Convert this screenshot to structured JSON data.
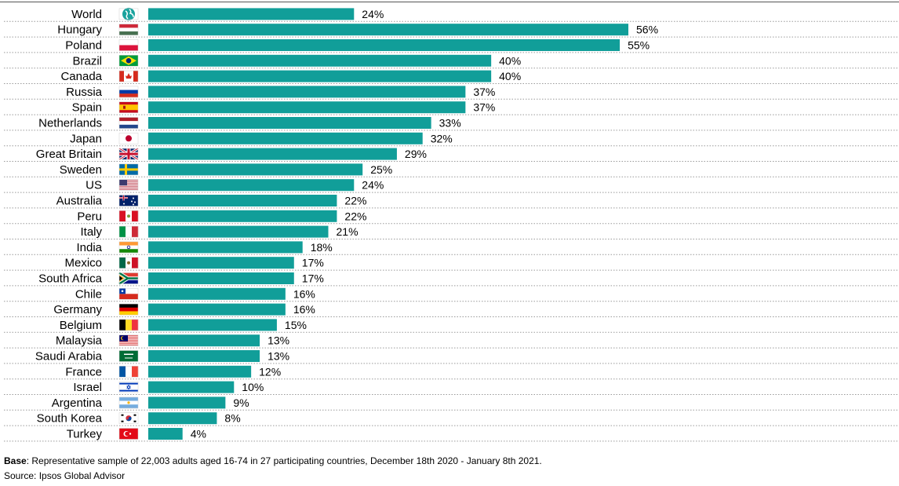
{
  "chart_data": {
    "type": "bar",
    "orientation": "horizontal",
    "categories": [
      "World",
      "Hungary",
      "Poland",
      "Brazil",
      "Canada",
      "Russia",
      "Spain",
      "Netherlands",
      "Japan",
      "Great Britain",
      "Sweden",
      "US",
      "Australia",
      "Peru",
      "Italy",
      "India",
      "Mexico",
      "South Africa",
      "Chile",
      "Germany",
      "Belgium",
      "Malaysia",
      "Saudi Arabia",
      "France",
      "Israel",
      "Argentina",
      "South Korea",
      "Turkey"
    ],
    "values": [
      24,
      56,
      55,
      40,
      40,
      37,
      37,
      33,
      32,
      29,
      25,
      24,
      22,
      22,
      21,
      18,
      17,
      17,
      16,
      16,
      15,
      13,
      13,
      12,
      10,
      9,
      8,
      4
    ],
    "value_suffix": "%",
    "bar_color": "#119e99",
    "xlim": [
      0,
      56
    ],
    "grid": false
  },
  "footer": {
    "base_label": "Base",
    "base_text": ": Representative sample of 22,003 adults aged 16-74 in 27 participating countries, December 18th 2020 - January 8th 2021.",
    "source": "Source: Ipsos Global Advisor"
  }
}
